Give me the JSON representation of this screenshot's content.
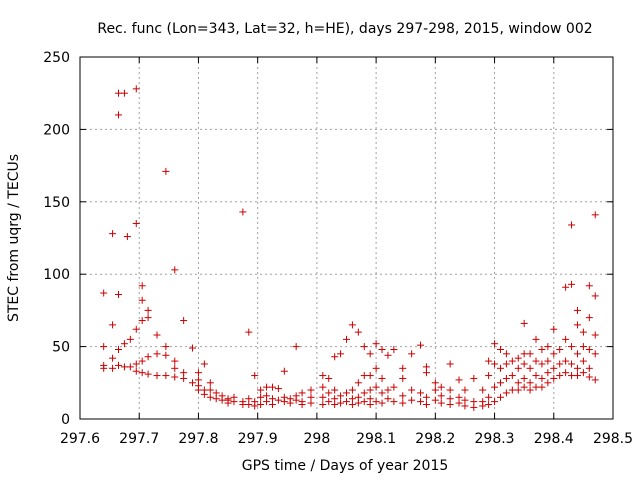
{
  "chart_data": {
    "type": "scatter",
    "title": "Rec. func (Lon=343, Lat=32, h=HE), days 297-298, 2015, window 002",
    "xlabel": "GPS time / Days of year 2015",
    "ylabel": "STEC from uqrg / TECUs",
    "xlim": [
      297.6,
      298.5
    ],
    "ylim": [
      0,
      250
    ],
    "xticks": [
      "297.6",
      "297.7",
      "297.8",
      "297.9",
      "298",
      "298.1",
      "298.2",
      "298.3",
      "298.4",
      "298.5"
    ],
    "xtick_values": [
      297.6,
      297.7,
      297.8,
      297.9,
      298.0,
      298.1,
      298.2,
      298.3,
      298.4,
      298.5
    ],
    "yticks": [
      "0",
      "50",
      "100",
      "150",
      "200",
      "250"
    ],
    "ytick_values": [
      0,
      50,
      100,
      150,
      200,
      250
    ],
    "grid": true,
    "marker": "+",
    "color": "#cc0000",
    "points": [
      [
        297.64,
        87
      ],
      [
        297.64,
        50
      ],
      [
        297.64,
        37
      ],
      [
        297.64,
        35
      ],
      [
        297.655,
        128
      ],
      [
        297.655,
        65
      ],
      [
        297.655,
        42
      ],
      [
        297.655,
        35
      ],
      [
        297.665,
        225
      ],
      [
        297.665,
        210
      ],
      [
        297.665,
        86
      ],
      [
        297.665,
        48
      ],
      [
        297.665,
        37
      ],
      [
        297.675,
        225
      ],
      [
        297.675,
        52
      ],
      [
        297.675,
        36
      ],
      [
        297.68,
        126
      ],
      [
        297.685,
        55
      ],
      [
        297.685,
        36
      ],
      [
        297.695,
        228
      ],
      [
        297.695,
        135
      ],
      [
        297.695,
        62
      ],
      [
        297.695,
        38
      ],
      [
        297.695,
        33
      ],
      [
        297.705,
        92
      ],
      [
        297.705,
        82
      ],
      [
        297.705,
        68
      ],
      [
        297.705,
        40
      ],
      [
        297.705,
        32
      ],
      [
        297.715,
        75
      ],
      [
        297.715,
        70
      ],
      [
        297.715,
        43
      ],
      [
        297.715,
        31
      ],
      [
        297.73,
        58
      ],
      [
        297.73,
        45
      ],
      [
        297.73,
        30
      ],
      [
        297.745,
        171
      ],
      [
        297.745,
        50
      ],
      [
        297.745,
        44
      ],
      [
        297.745,
        30
      ],
      [
        297.76,
        103
      ],
      [
        297.76,
        40
      ],
      [
        297.76,
        35
      ],
      [
        297.76,
        29
      ],
      [
        297.775,
        68
      ],
      [
        297.775,
        32
      ],
      [
        297.775,
        28
      ],
      [
        297.79,
        49
      ],
      [
        297.79,
        25
      ],
      [
        297.8,
        32
      ],
      [
        297.8,
        27
      ],
      [
        297.8,
        23
      ],
      [
        297.8,
        20
      ],
      [
        297.81,
        38
      ],
      [
        297.81,
        20
      ],
      [
        297.81,
        17
      ],
      [
        297.82,
        25
      ],
      [
        297.82,
        20
      ],
      [
        297.82,
        15
      ],
      [
        297.83,
        18
      ],
      [
        297.83,
        14
      ],
      [
        297.84,
        16
      ],
      [
        297.84,
        13
      ],
      [
        297.85,
        14
      ],
      [
        297.85,
        13
      ],
      [
        297.85,
        11
      ],
      [
        297.86,
        15
      ],
      [
        297.86,
        12
      ],
      [
        297.875,
        143
      ],
      [
        297.875,
        12
      ],
      [
        297.875,
        10
      ],
      [
        297.885,
        60
      ],
      [
        297.885,
        14
      ],
      [
        297.885,
        10
      ],
      [
        297.895,
        30
      ],
      [
        297.895,
        12
      ],
      [
        297.895,
        9
      ],
      [
        297.905,
        20
      ],
      [
        297.905,
        15
      ],
      [
        297.905,
        10
      ],
      [
        297.915,
        22
      ],
      [
        297.915,
        16
      ],
      [
        297.915,
        12
      ],
      [
        297.925,
        22
      ],
      [
        297.925,
        14
      ],
      [
        297.925,
        10
      ],
      [
        297.935,
        21
      ],
      [
        297.935,
        13
      ],
      [
        297.945,
        33
      ],
      [
        297.945,
        15
      ],
      [
        297.945,
        12
      ],
      [
        297.955,
        14
      ],
      [
        297.955,
        11
      ],
      [
        297.965,
        50
      ],
      [
        297.965,
        16
      ],
      [
        297.965,
        13
      ],
      [
        297.975,
        18
      ],
      [
        297.975,
        12
      ],
      [
        297.975,
        10
      ],
      [
        297.99,
        20
      ],
      [
        297.99,
        15
      ],
      [
        297.99,
        11
      ],
      [
        298.01,
        30
      ],
      [
        298.01,
        22
      ],
      [
        298.01,
        15
      ],
      [
        298.01,
        10
      ],
      [
        298.02,
        28
      ],
      [
        298.02,
        18
      ],
      [
        298.02,
        12
      ],
      [
        298.03,
        43
      ],
      [
        298.03,
        20
      ],
      [
        298.03,
        14
      ],
      [
        298.03,
        10
      ],
      [
        298.04,
        45
      ],
      [
        298.04,
        16
      ],
      [
        298.04,
        11
      ],
      [
        298.05,
        55
      ],
      [
        298.05,
        18
      ],
      [
        298.05,
        12
      ],
      [
        298.06,
        65
      ],
      [
        298.06,
        20
      ],
      [
        298.06,
        14
      ],
      [
        298.06,
        10
      ],
      [
        298.07,
        60
      ],
      [
        298.07,
        25
      ],
      [
        298.07,
        15
      ],
      [
        298.07,
        11
      ],
      [
        298.08,
        50
      ],
      [
        298.08,
        30
      ],
      [
        298.08,
        18
      ],
      [
        298.08,
        12
      ],
      [
        298.09,
        45
      ],
      [
        298.09,
        30
      ],
      [
        298.09,
        20
      ],
      [
        298.09,
        14
      ],
      [
        298.09,
        10
      ],
      [
        298.1,
        52
      ],
      [
        298.1,
        35
      ],
      [
        298.1,
        22
      ],
      [
        298.1,
        12
      ],
      [
        298.11,
        48
      ],
      [
        298.11,
        28
      ],
      [
        298.11,
        18
      ],
      [
        298.11,
        11
      ],
      [
        298.12,
        44
      ],
      [
        298.12,
        20
      ],
      [
        298.12,
        14
      ],
      [
        298.13,
        48
      ],
      [
        298.13,
        22
      ],
      [
        298.13,
        12
      ],
      [
        298.145,
        35
      ],
      [
        298.145,
        28
      ],
      [
        298.145,
        16
      ],
      [
        298.145,
        11
      ],
      [
        298.16,
        45
      ],
      [
        298.16,
        20
      ],
      [
        298.16,
        13
      ],
      [
        298.175,
        51
      ],
      [
        298.175,
        18
      ],
      [
        298.175,
        12
      ],
      [
        298.185,
        36
      ],
      [
        298.185,
        32
      ],
      [
        298.185,
        15
      ],
      [
        298.185,
        10
      ],
      [
        298.2,
        25
      ],
      [
        298.2,
        20
      ],
      [
        298.2,
        13
      ],
      [
        298.21,
        22
      ],
      [
        298.21,
        16
      ],
      [
        298.21,
        11
      ],
      [
        298.225,
        38
      ],
      [
        298.225,
        20
      ],
      [
        298.225,
        14
      ],
      [
        298.225,
        10
      ],
      [
        298.24,
        27
      ],
      [
        298.24,
        15
      ],
      [
        298.24,
        11
      ],
      [
        298.25,
        20
      ],
      [
        298.25,
        13
      ],
      [
        298.25,
        9
      ],
      [
        298.265,
        28
      ],
      [
        298.265,
        12
      ],
      [
        298.265,
        8
      ],
      [
        298.28,
        20
      ],
      [
        298.28,
        12
      ],
      [
        298.28,
        9
      ],
      [
        298.29,
        40
      ],
      [
        298.29,
        30
      ],
      [
        298.29,
        15
      ],
      [
        298.29,
        10
      ],
      [
        298.3,
        52
      ],
      [
        298.3,
        38
      ],
      [
        298.3,
        22
      ],
      [
        298.3,
        12
      ],
      [
        298.31,
        48
      ],
      [
        298.31,
        35
      ],
      [
        298.31,
        25
      ],
      [
        298.31,
        15
      ],
      [
        298.32,
        45
      ],
      [
        298.32,
        38
      ],
      [
        298.32,
        28
      ],
      [
        298.32,
        18
      ],
      [
        298.33,
        40
      ],
      [
        298.33,
        30
      ],
      [
        298.33,
        20
      ],
      [
        298.34,
        42
      ],
      [
        298.34,
        35
      ],
      [
        298.34,
        25
      ],
      [
        298.34,
        20
      ],
      [
        298.35,
        66
      ],
      [
        298.35,
        45
      ],
      [
        298.35,
        38
      ],
      [
        298.35,
        28
      ],
      [
        298.35,
        22
      ],
      [
        298.36,
        45
      ],
      [
        298.36,
        35
      ],
      [
        298.36,
        25
      ],
      [
        298.36,
        20
      ],
      [
        298.37,
        55
      ],
      [
        298.37,
        40
      ],
      [
        298.37,
        30
      ],
      [
        298.37,
        22
      ],
      [
        298.38,
        48
      ],
      [
        298.38,
        38
      ],
      [
        298.38,
        28
      ],
      [
        298.38,
        22
      ],
      [
        298.39,
        50
      ],
      [
        298.39,
        40
      ],
      [
        298.39,
        32
      ],
      [
        298.39,
        25
      ],
      [
        298.4,
        62
      ],
      [
        298.4,
        45
      ],
      [
        298.4,
        35
      ],
      [
        298.4,
        28
      ],
      [
        298.41,
        48
      ],
      [
        298.41,
        38
      ],
      [
        298.41,
        30
      ],
      [
        298.42,
        91
      ],
      [
        298.42,
        55
      ],
      [
        298.42,
        40
      ],
      [
        298.42,
        32
      ],
      [
        298.43,
        134
      ],
      [
        298.43,
        93
      ],
      [
        298.43,
        50
      ],
      [
        298.43,
        38
      ],
      [
        298.43,
        30
      ],
      [
        298.44,
        75
      ],
      [
        298.44,
        65
      ],
      [
        298.44,
        45
      ],
      [
        298.44,
        35
      ],
      [
        298.44,
        30
      ],
      [
        298.45,
        60
      ],
      [
        298.45,
        50
      ],
      [
        298.45,
        40
      ],
      [
        298.45,
        32
      ],
      [
        298.46,
        92
      ],
      [
        298.46,
        70
      ],
      [
        298.46,
        48
      ],
      [
        298.46,
        35
      ],
      [
        298.46,
        29
      ],
      [
        298.47,
        141
      ],
      [
        298.47,
        85
      ],
      [
        298.47,
        58
      ],
      [
        298.47,
        45
      ],
      [
        298.47,
        27
      ]
    ]
  }
}
